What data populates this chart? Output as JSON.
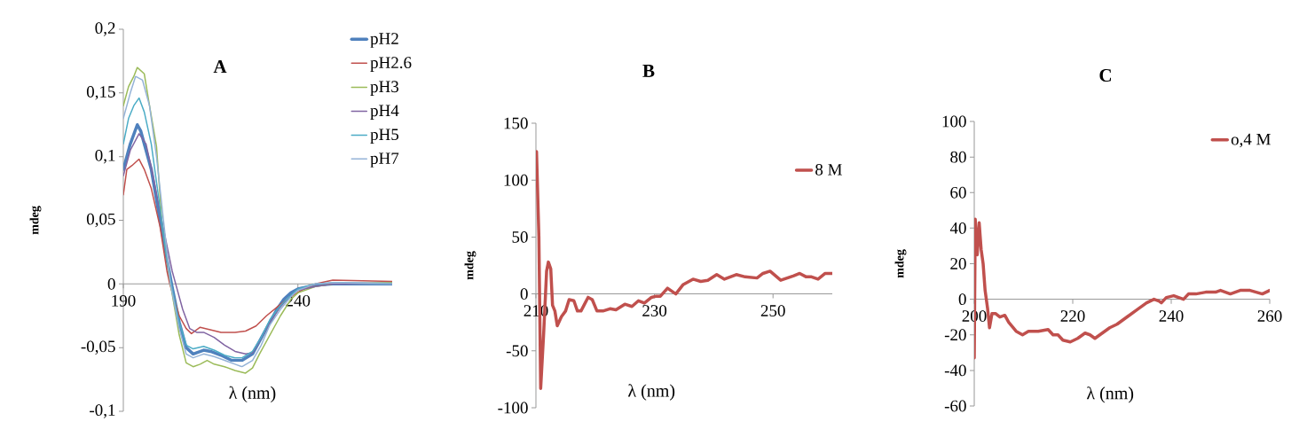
{
  "chart_data": [
    {
      "type": "line",
      "title": "A",
      "xlabel": "λ (nm)",
      "ylabel": "mdeg",
      "xlim": [
        190,
        267
      ],
      "ylim": [
        -0.1,
        0.2
      ],
      "xticks": [
        190,
        240
      ],
      "yticks": [
        {
          "value": -0.1,
          "label": "-0,1"
        },
        {
          "value": -0.05,
          "label": "-0,05"
        },
        0,
        {
          "value": 0.05,
          "label": "0,05"
        },
        {
          "value": 0.1,
          "label": "0,1"
        },
        {
          "value": 0.15,
          "label": "0,15"
        },
        {
          "value": 0.2,
          "label": "0,2"
        }
      ],
      "legend": "top right",
      "series": [
        {
          "name": "pH2",
          "color": "#4f81bd",
          "x": [
            190,
            192,
            194,
            195,
            198,
            200.5,
            203.8,
            206,
            208,
            210,
            213,
            215,
            218,
            221,
            224,
            227,
            229,
            232,
            234,
            236,
            238,
            240,
            245,
            250,
            267
          ],
          "values": [
            0.09,
            0.11,
            0.125,
            0.12,
            0.09,
            0.05,
            0,
            -0.03,
            -0.05,
            -0.055,
            -0.052,
            -0.053,
            -0.056,
            -0.06,
            -0.06,
            -0.055,
            -0.045,
            -0.03,
            -0.02,
            -0.012,
            -0.007,
            -0.004,
            -0.001,
            0,
            0
          ]
        },
        {
          "name": "pH2.6",
          "color": "#c0504d",
          "x": [
            190,
            191,
            192.5,
            194.5,
            196,
            198,
            200.5,
            202.5,
            203.3,
            206,
            208,
            209.5,
            212,
            215,
            218,
            222,
            225,
            228,
            231,
            235,
            238,
            241,
            245,
            250,
            267
          ],
          "values": [
            0.07,
            0.09,
            0.093,
            0.098,
            0.09,
            0.075,
            0.045,
            0.01,
            0,
            -0.025,
            -0.035,
            -0.039,
            -0.034,
            -0.036,
            -0.038,
            -0.038,
            -0.037,
            -0.033,
            -0.025,
            -0.016,
            -0.01,
            -0.005,
            0,
            0.003,
            0.002
          ]
        },
        {
          "name": "pH3",
          "color": "#9bbb59",
          "x": [
            190,
            191.5,
            193,
            194,
            196,
            197.5,
            199.5,
            201,
            203.5,
            206,
            208,
            210,
            212,
            214,
            216,
            219,
            222,
            225,
            227,
            229,
            232,
            235,
            238,
            240,
            245,
            250,
            267
          ],
          "values": [
            0.14,
            0.155,
            0.163,
            0.17,
            0.165,
            0.14,
            0.108,
            0.05,
            0,
            -0.04,
            -0.062,
            -0.065,
            -0.063,
            -0.06,
            -0.063,
            -0.065,
            -0.068,
            -0.07,
            -0.066,
            -0.055,
            -0.04,
            -0.025,
            -0.012,
            -0.007,
            -0.002,
            0,
            0.001
          ]
        },
        {
          "name": "pH4",
          "color": "#8064a2",
          "x": [
            190,
            192,
            194.5,
            196.5,
            198.5,
            201,
            204,
            205,
            207,
            209,
            211,
            213,
            216,
            219,
            222,
            225,
            227,
            229,
            232,
            235,
            238,
            240,
            245,
            250,
            267
          ],
          "values": [
            0.085,
            0.105,
            0.118,
            0.11,
            0.085,
            0.05,
            0.01,
            0,
            -0.02,
            -0.035,
            -0.038,
            -0.038,
            -0.042,
            -0.048,
            -0.053,
            -0.055,
            -0.054,
            -0.045,
            -0.03,
            -0.018,
            -0.009,
            -0.005,
            -0.002,
            0,
            0
          ]
        },
        {
          "name": "pH5",
          "color": "#4bacc6",
          "x": [
            190,
            191.5,
            193,
            194.5,
            196,
            198,
            200,
            202.5,
            203.7,
            206,
            208,
            210,
            213,
            216,
            219,
            222,
            224,
            227,
            229.5,
            232,
            235,
            238,
            240,
            245,
            250,
            267
          ],
          "values": [
            0.11,
            0.13,
            0.14,
            0.146,
            0.135,
            0.11,
            0.07,
            0.02,
            0,
            -0.03,
            -0.048,
            -0.051,
            -0.049,
            -0.052,
            -0.056,
            -0.058,
            -0.058,
            -0.053,
            -0.042,
            -0.028,
            -0.017,
            -0.009,
            -0.004,
            0,
            0.001,
            0
          ]
        },
        {
          "name": "pH7",
          "color": "#95b3d7",
          "x": [
            190,
            192,
            193.5,
            195.5,
            197.5,
            199.5,
            201.5,
            203.5,
            206,
            208,
            210,
            213,
            216,
            219,
            222,
            224,
            227,
            229.5,
            232,
            235,
            238,
            240,
            245,
            250,
            267
          ],
          "values": [
            0.13,
            0.15,
            0.163,
            0.16,
            0.14,
            0.1,
            0.05,
            0,
            -0.035,
            -0.055,
            -0.058,
            -0.055,
            -0.057,
            -0.06,
            -0.063,
            -0.065,
            -0.06,
            -0.048,
            -0.032,
            -0.02,
            -0.01,
            -0.005,
            0,
            0.001,
            0
          ]
        }
      ]
    },
    {
      "type": "line",
      "title": "B",
      "xlabel": "λ (nm)",
      "ylabel": "mdeg",
      "xlim": [
        210,
        260
      ],
      "ylim": [
        -100,
        150
      ],
      "xticks": [
        210,
        230,
        250
      ],
      "yticks": [
        -100,
        -50,
        0,
        50,
        100,
        150
      ],
      "legend": "top right",
      "series": [
        {
          "name": "8 M",
          "color": "#c0504d",
          "x": [
            210.1,
            210.5,
            210.8,
            211.3,
            211.8,
            212.1,
            212.5,
            212.8,
            213.2,
            213.6,
            214.3,
            215,
            215.6,
            216.4,
            217,
            217.6,
            218.3,
            218.8,
            219.5,
            220.3,
            221.3,
            222.5,
            223.5,
            225,
            226.2,
            227.3,
            228.3,
            229.5,
            230.3,
            231,
            232.2,
            233.6,
            234.8,
            236.5,
            237.8,
            239,
            240.5,
            241.8,
            243.8,
            245.3,
            247.3,
            248.3,
            249.5,
            251.3,
            253.5,
            254.5,
            255.6,
            256.5,
            257.6,
            258.8,
            260
          ],
          "values": [
            125,
            50,
            -83,
            -35,
            20,
            28,
            22,
            -10,
            -15,
            -28,
            -20,
            -15,
            -5,
            -6,
            -15,
            -15,
            -8,
            -3,
            -5,
            -15,
            -15,
            -13,
            -14,
            -9,
            -11,
            -6,
            -8,
            -3,
            -2,
            -2,
            5,
            0,
            8,
            13,
            11,
            12,
            17,
            13,
            17,
            15,
            14,
            18,
            20,
            12,
            16,
            18,
            15,
            15,
            13,
            18,
            18
          ]
        }
      ]
    },
    {
      "type": "line",
      "title": "C",
      "xlabel": "λ (nm)",
      "ylabel": "mdeg",
      "xlim": [
        200,
        260
      ],
      "ylim": [
        -60,
        100
      ],
      "xticks": [
        200,
        220,
        240,
        260
      ],
      "yticks": [
        -60,
        -40,
        -20,
        0,
        20,
        40,
        60,
        80,
        100
      ],
      "legend": "top right",
      "series": [
        {
          "name": "o,4 M",
          "color": "#c0504d",
          "x": [
            200,
            200.2,
            200.6,
            201,
            201.4,
            201.8,
            202.2,
            202.7,
            203.1,
            203.6,
            204.3,
            205.2,
            206.2,
            207,
            208.5,
            209.8,
            211,
            213,
            215,
            216,
            217,
            218,
            219.5,
            221,
            222.5,
            223.5,
            224.5,
            226,
            227.5,
            229,
            231,
            233,
            235,
            236.5,
            237.5,
            238,
            239,
            240.5,
            242.5,
            243.5,
            245,
            247,
            249,
            250,
            252,
            254,
            256,
            258.5,
            260
          ],
          "values": [
            -33,
            45,
            25,
            43,
            28,
            20,
            5,
            -5,
            -16,
            -8,
            -8,
            -10,
            -9,
            -13,
            -18,
            -20,
            -18,
            -18,
            -17,
            -20,
            -20,
            -23,
            -24,
            -22,
            -19,
            -20,
            -22,
            -19,
            -16,
            -14,
            -10,
            -6,
            -2,
            0,
            -1,
            -2,
            1,
            2,
            0,
            3,
            3,
            4,
            4,
            5,
            3,
            5,
            5,
            3,
            5
          ]
        }
      ]
    }
  ]
}
